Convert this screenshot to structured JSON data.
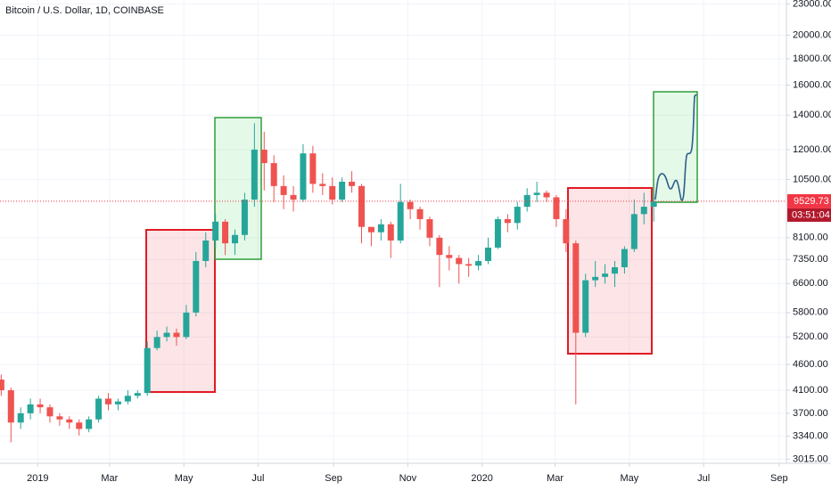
{
  "chart_data": {
    "type": "candlestick",
    "title": "Bitcoin / U.S. Dollar, 1D, COINBASE",
    "log_scale": true,
    "grid": true,
    "up_color": "#26a69a",
    "down_color": "#ef5350",
    "x": [
      "2018-12-02",
      "2018-12-10",
      "2018-12-18",
      "2018-12-26",
      "2019-01-03",
      "2019-01-11",
      "2019-01-19",
      "2019-01-27",
      "2019-02-04",
      "2019-02-12",
      "2019-02-20",
      "2019-02-28",
      "2019-03-08",
      "2019-03-16",
      "2019-03-24",
      "2019-04-01",
      "2019-04-09",
      "2019-04-17",
      "2019-04-25",
      "2019-05-03",
      "2019-05-11",
      "2019-05-19",
      "2019-05-27",
      "2019-06-04",
      "2019-06-12",
      "2019-06-20",
      "2019-06-28",
      "2019-07-06",
      "2019-07-14",
      "2019-07-22",
      "2019-07-30",
      "2019-08-07",
      "2019-08-15",
      "2019-08-23",
      "2019-08-31",
      "2019-09-08",
      "2019-09-16",
      "2019-09-24",
      "2019-10-02",
      "2019-10-10",
      "2019-10-18",
      "2019-10-26",
      "2019-11-03",
      "2019-11-11",
      "2019-11-19",
      "2019-11-27",
      "2019-12-05",
      "2019-12-13",
      "2019-12-21",
      "2019-12-29",
      "2020-01-06",
      "2020-01-14",
      "2020-01-22",
      "2020-01-30",
      "2020-02-07",
      "2020-02-15",
      "2020-02-23",
      "2020-03-02",
      "2020-03-10",
      "2020-03-18",
      "2020-03-26",
      "2020-04-03",
      "2020-04-11",
      "2020-04-19",
      "2020-04-27",
      "2020-05-05",
      "2020-05-13",
      "2020-05-21"
    ],
    "open": [
      4300,
      4100,
      3550,
      3700,
      3850,
      3800,
      3650,
      3600,
      3550,
      3450,
      3600,
      3950,
      3850,
      3900,
      4000,
      4050,
      4950,
      5200,
      5300,
      5200,
      5800,
      7300,
      8000,
      8700,
      7900,
      8200,
      9600,
      12000,
      11300,
      10200,
      9800,
      9600,
      11800,
      10300,
      10200,
      9600,
      10400,
      10200,
      8500,
      8300,
      8600,
      8000,
      9500,
      9200,
      8800,
      8100,
      7500,
      7400,
      7200,
      7150,
      7300,
      7750,
      8800,
      8650,
      9300,
      9800,
      9900,
      9700,
      8800,
      7900,
      5300,
      6700,
      6800,
      6900,
      7100,
      7700,
      9000,
      9300
    ],
    "high": [
      4400,
      4150,
      3800,
      3950,
      3950,
      3850,
      3700,
      3650,
      3600,
      3650,
      4000,
      4050,
      3950,
      4100,
      4100,
      5100,
      5350,
      5450,
      5400,
      6000,
      7600,
      8300,
      9000,
      8800,
      8400,
      9900,
      13500,
      13000,
      11700,
      10700,
      10200,
      12300,
      12200,
      10800,
      10600,
      10600,
      10900,
      10300,
      8500,
      8800,
      8700,
      10300,
      9600,
      9300,
      8900,
      8200,
      7800,
      7500,
      7400,
      7500,
      8100,
      8900,
      9000,
      9500,
      10100,
      10400,
      10000,
      9800,
      9200,
      8000,
      6900,
      7300,
      7200,
      7300,
      7800,
      9600,
      9900,
      9900
    ],
    "low": [
      4000,
      3250,
      3450,
      3600,
      3700,
      3550,
      3500,
      3450,
      3350,
      3400,
      3550,
      3750,
      3750,
      3850,
      3950,
      4000,
      4900,
      5100,
      5000,
      5150,
      5700,
      7100,
      7700,
      7500,
      7500,
      8000,
      9300,
      10000,
      9500,
      9200,
      9100,
      9500,
      9900,
      9800,
      9400,
      9500,
      9900,
      7900,
      7800,
      8000,
      7400,
      7900,
      8800,
      8400,
      7800,
      6500,
      7000,
      6600,
      6800,
      7000,
      7200,
      7700,
      8300,
      8400,
      9100,
      9500,
      9500,
      8500,
      7600,
      3850,
      5200,
      6500,
      6600,
      6500,
      6900,
      7600,
      8600,
      8700
    ],
    "close": [
      4100,
      3550,
      3700,
      3850,
      3800,
      3650,
      3600,
      3550,
      3450,
      3600,
      3950,
      3850,
      3900,
      4000,
      4050,
      4950,
      5200,
      5300,
      5200,
      5800,
      7300,
      8000,
      8700,
      7900,
      8200,
      9600,
      12000,
      11300,
      10200,
      9800,
      9600,
      11800,
      10300,
      10200,
      9600,
      10400,
      10200,
      8500,
      8300,
      8600,
      8000,
      9500,
      9200,
      8800,
      8100,
      7500,
      7400,
      7200,
      7150,
      7300,
      7750,
      8800,
      8650,
      9300,
      9800,
      9900,
      9700,
      8800,
      7900,
      5300,
      6700,
      6800,
      6900,
      7100,
      7700,
      9000,
      9300,
      9529.73
    ],
    "last_price": 9529.73,
    "last_price_color": "#f23645",
    "countdown": "03:51:04",
    "xlim": [
      "2018-12-01",
      "2020-09-07"
    ],
    "xticks": [
      {
        "value": "2019-01-01",
        "label": "2019"
      },
      {
        "value": "2019-03-01",
        "label": "Mar"
      },
      {
        "value": "2019-05-01",
        "label": "May"
      },
      {
        "value": "2019-07-01",
        "label": "Jul"
      },
      {
        "value": "2019-09-01",
        "label": "Sep"
      },
      {
        "value": "2019-11-01",
        "label": "Nov"
      },
      {
        "value": "2020-01-01",
        "label": "2020"
      },
      {
        "value": "2020-03-01",
        "label": "Mar"
      },
      {
        "value": "2020-05-01",
        "label": "May"
      },
      {
        "value": "2020-07-01",
        "label": "Jul"
      },
      {
        "value": "2020-09-01",
        "label": "Sep"
      }
    ],
    "ylim": [
      2960,
      23400
    ],
    "yticks": [
      {
        "value": 3015,
        "label": "3015.00"
      },
      {
        "value": 3340,
        "label": "3340.00"
      },
      {
        "value": 3700,
        "label": "3700.00"
      },
      {
        "value": 4100,
        "label": "4100.00"
      },
      {
        "value": 4600,
        "label": "4600.00"
      },
      {
        "value": 5200,
        "label": "5200.00"
      },
      {
        "value": 5800,
        "label": "5800.00"
      },
      {
        "value": 6600,
        "label": "6600.00"
      },
      {
        "value": 7350,
        "label": "7350.00"
      },
      {
        "value": 8100,
        "label": "8100.00"
      },
      {
        "value": 10500,
        "label": "10500.00"
      },
      {
        "value": 12000,
        "label": "12000.00"
      },
      {
        "value": 14000,
        "label": "14000.00"
      },
      {
        "value": 16000,
        "label": "16000.00"
      },
      {
        "value": 18000,
        "label": "18000.00"
      },
      {
        "value": 20000,
        "label": "20000.00"
      },
      {
        "value": 23000,
        "label": "23000.00"
      }
    ]
  }
}
